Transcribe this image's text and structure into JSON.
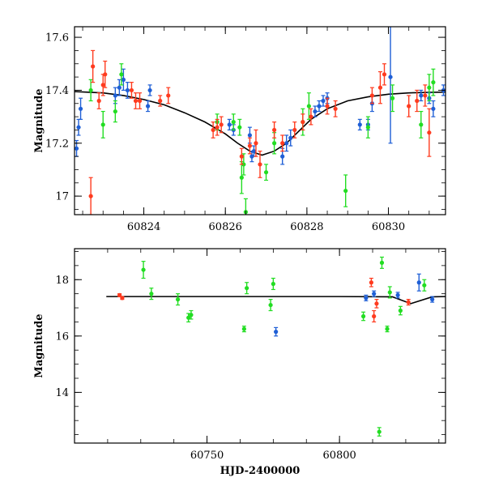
{
  "chart_data": [
    {
      "type": "scatter",
      "panel": "top",
      "title": "",
      "xlabel": "",
      "ylabel": "Magnitude",
      "xlim": [
        60822.3,
        60831.4
      ],
      "ylim": [
        17.64,
        16.93
      ],
      "y_inverted": true,
      "grid": false,
      "xticks": [
        60824,
        60826,
        60828,
        60830
      ],
      "xtick_labels": [
        "60824",
        "60826",
        "60828",
        "60830"
      ],
      "yticks": [
        17,
        17.2,
        17.4,
        17.6
      ],
      "ytick_labels": [
        "17",
        "17.2",
        "17.4",
        "17.6"
      ],
      "model": {
        "type": "line",
        "color": "#000000",
        "x": [
          60822.3,
          60823.0,
          60823.5,
          60824.0,
          60824.5,
          60825.0,
          60825.5,
          60826.0,
          60826.3,
          60826.6,
          60826.9,
          60827.2,
          60827.5,
          60827.8,
          60828.1,
          60828.5,
          60829.0,
          60829.5,
          60830.0,
          60830.5,
          60831.0,
          60831.4
        ],
        "y": [
          17.395,
          17.39,
          17.38,
          17.365,
          17.345,
          17.315,
          17.28,
          17.235,
          17.2,
          17.17,
          17.155,
          17.17,
          17.2,
          17.245,
          17.29,
          17.33,
          17.36,
          17.375,
          17.385,
          17.39,
          17.392,
          17.393
        ]
      },
      "series": [
        {
          "color": "#1f5fd6",
          "points": [
            {
              "x": 60822.35,
              "y": 17.18,
              "err": 0.03
            },
            {
              "x": 60822.4,
              "y": 17.26,
              "err": 0.03
            },
            {
              "x": 60822.45,
              "y": 17.33,
              "err": 0.04
            },
            {
              "x": 60823.3,
              "y": 17.38,
              "err": 0.03
            },
            {
              "x": 60823.4,
              "y": 17.41,
              "err": 0.03
            },
            {
              "x": 60823.5,
              "y": 17.44,
              "err": 0.04
            },
            {
              "x": 60823.6,
              "y": 17.4,
              "err": 0.03
            },
            {
              "x": 60824.1,
              "y": 17.34,
              "err": 0.02
            },
            {
              "x": 60824.15,
              "y": 17.4,
              "err": 0.02
            },
            {
              "x": 60826.1,
              "y": 17.27,
              "err": 0.02
            },
            {
              "x": 60826.2,
              "y": 17.25,
              "err": 0.02
            },
            {
              "x": 60826.6,
              "y": 17.23,
              "err": 0.03
            },
            {
              "x": 60826.65,
              "y": 17.15,
              "err": 0.02
            },
            {
              "x": 60826.7,
              "y": 17.17,
              "err": 0.02
            },
            {
              "x": 60827.4,
              "y": 17.15,
              "err": 0.03
            },
            {
              "x": 60827.5,
              "y": 17.2,
              "err": 0.03
            },
            {
              "x": 60827.6,
              "y": 17.22,
              "err": 0.03
            },
            {
              "x": 60828.2,
              "y": 17.32,
              "err": 0.02
            },
            {
              "x": 60828.3,
              "y": 17.34,
              "err": 0.02
            },
            {
              "x": 60828.4,
              "y": 17.36,
              "err": 0.02
            },
            {
              "x": 60828.5,
              "y": 17.37,
              "err": 0.02
            },
            {
              "x": 60829.3,
              "y": 17.27,
              "err": 0.02
            },
            {
              "x": 60829.5,
              "y": 17.27,
              "err": 0.02
            },
            {
              "x": 60829.6,
              "y": 17.35,
              "err": 0.03
            },
            {
              "x": 60830.05,
              "y": 17.45,
              "err": 0.25
            },
            {
              "x": 60830.8,
              "y": 17.38,
              "err": 0.02
            },
            {
              "x": 60831.0,
              "y": 17.37,
              "err": 0.02
            },
            {
              "x": 60831.1,
              "y": 17.33,
              "err": 0.03
            },
            {
              "x": 60831.35,
              "y": 17.4,
              "err": 0.02
            }
          ]
        },
        {
          "color": "#22dd22",
          "points": [
            {
              "x": 60822.7,
              "y": 17.4,
              "err": 0.04
            },
            {
              "x": 60823.0,
              "y": 17.27,
              "err": 0.05
            },
            {
              "x": 60823.3,
              "y": 17.32,
              "err": 0.04
            },
            {
              "x": 60823.45,
              "y": 17.46,
              "err": 0.04
            },
            {
              "x": 60825.8,
              "y": 17.28,
              "err": 0.03
            },
            {
              "x": 60826.2,
              "y": 17.28,
              "err": 0.03
            },
            {
              "x": 60826.35,
              "y": 17.26,
              "err": 0.03
            },
            {
              "x": 60826.4,
              "y": 17.07,
              "err": 0.06
            },
            {
              "x": 60826.45,
              "y": 17.12,
              "err": 0.04
            },
            {
              "x": 60826.5,
              "y": 16.94,
              "err": 0.05
            },
            {
              "x": 60827.0,
              "y": 17.09,
              "err": 0.03
            },
            {
              "x": 60827.2,
              "y": 17.2,
              "err": 0.04
            },
            {
              "x": 60827.9,
              "y": 17.28,
              "err": 0.05
            },
            {
              "x": 60828.05,
              "y": 17.34,
              "err": 0.05
            },
            {
              "x": 60828.95,
              "y": 17.02,
              "err": 0.06
            },
            {
              "x": 60829.5,
              "y": 17.26,
              "err": 0.04
            },
            {
              "x": 60830.1,
              "y": 17.37,
              "err": 0.05
            },
            {
              "x": 60830.8,
              "y": 17.27,
              "err": 0.05
            },
            {
              "x": 60831.0,
              "y": 17.41,
              "err": 0.05
            },
            {
              "x": 60831.1,
              "y": 17.43,
              "err": 0.05
            }
          ]
        },
        {
          "color": "#ff3b1f",
          "points": [
            {
              "x": 60822.7,
              "y": 17.0,
              "err": 0.07
            },
            {
              "x": 60822.75,
              "y": 17.49,
              "err": 0.06
            },
            {
              "x": 60822.9,
              "y": 17.36,
              "err": 0.03
            },
            {
              "x": 60823.0,
              "y": 17.42,
              "err": 0.04
            },
            {
              "x": 60823.05,
              "y": 17.46,
              "err": 0.05
            },
            {
              "x": 60823.7,
              "y": 17.4,
              "err": 0.03
            },
            {
              "x": 60823.8,
              "y": 17.36,
              "err": 0.03
            },
            {
              "x": 60823.9,
              "y": 17.36,
              "err": 0.03
            },
            {
              "x": 60824.4,
              "y": 17.36,
              "err": 0.02
            },
            {
              "x": 60824.6,
              "y": 17.38,
              "err": 0.03
            },
            {
              "x": 60825.7,
              "y": 17.25,
              "err": 0.03
            },
            {
              "x": 60825.8,
              "y": 17.26,
              "err": 0.03
            },
            {
              "x": 60825.9,
              "y": 17.27,
              "err": 0.03
            },
            {
              "x": 60826.4,
              "y": 17.15,
              "err": 0.03
            },
            {
              "x": 60826.6,
              "y": 17.19,
              "err": 0.03
            },
            {
              "x": 60826.75,
              "y": 17.2,
              "err": 0.05
            },
            {
              "x": 60826.85,
              "y": 17.12,
              "err": 0.05
            },
            {
              "x": 60827.2,
              "y": 17.25,
              "err": 0.03
            },
            {
              "x": 60827.4,
              "y": 17.2,
              "err": 0.03
            },
            {
              "x": 60827.7,
              "y": 17.25,
              "err": 0.03
            },
            {
              "x": 60827.9,
              "y": 17.28,
              "err": 0.03
            },
            {
              "x": 60828.1,
              "y": 17.3,
              "err": 0.03
            },
            {
              "x": 60828.5,
              "y": 17.34,
              "err": 0.03
            },
            {
              "x": 60828.7,
              "y": 17.33,
              "err": 0.03
            },
            {
              "x": 60829.6,
              "y": 17.38,
              "err": 0.03
            },
            {
              "x": 60829.8,
              "y": 17.41,
              "err": 0.06
            },
            {
              "x": 60829.9,
              "y": 17.46,
              "err": 0.04
            },
            {
              "x": 60830.5,
              "y": 17.34,
              "err": 0.04
            },
            {
              "x": 60830.7,
              "y": 17.36,
              "err": 0.04
            },
            {
              "x": 60830.9,
              "y": 17.38,
              "err": 0.04
            },
            {
              "x": 60831.0,
              "y": 17.24,
              "err": 0.09
            }
          ]
        }
      ]
    },
    {
      "type": "scatter",
      "panel": "bottom",
      "title": "",
      "xlabel": "HJD-2400000",
      "ylabel": "Magnitude",
      "xlim": [
        60700,
        60840
      ],
      "ylim": [
        19.1,
        12.2
      ],
      "y_inverted": true,
      "grid": false,
      "xticks": [
        60750,
        60800
      ],
      "xtick_labels": [
        "60750",
        "60800"
      ],
      "yticks": [
        14,
        16,
        18
      ],
      "ytick_labels": [
        "14",
        "16",
        "18"
      ],
      "model": {
        "type": "line",
        "color": "#000000",
        "x": [
          60712,
          60760,
          60800,
          60820,
          60826.9,
          60835,
          60840
        ],
        "y": [
          17.4,
          17.4,
          17.4,
          17.39,
          17.15,
          17.39,
          17.4
        ]
      },
      "series": [
        {
          "color": "#22dd22",
          "points": [
            {
              "x": 60726,
              "y": 18.35,
              "err": 0.3
            },
            {
              "x": 60729,
              "y": 17.5,
              "err": 0.2
            },
            {
              "x": 60739,
              "y": 17.3,
              "err": 0.2
            },
            {
              "x": 60743,
              "y": 16.65,
              "err": 0.15
            },
            {
              "x": 60744,
              "y": 16.75,
              "err": 0.15
            },
            {
              "x": 60764,
              "y": 16.25,
              "err": 0.1
            },
            {
              "x": 60765,
              "y": 17.7,
              "err": 0.2
            },
            {
              "x": 60774,
              "y": 17.1,
              "err": 0.2
            },
            {
              "x": 60775,
              "y": 17.85,
              "err": 0.2
            },
            {
              "x": 60809,
              "y": 16.7,
              "err": 0.15
            },
            {
              "x": 60815,
              "y": 12.6,
              "err": 0.15
            },
            {
              "x": 60816,
              "y": 18.6,
              "err": 0.2
            },
            {
              "x": 60818,
              "y": 16.25,
              "err": 0.1
            },
            {
              "x": 60819,
              "y": 17.55,
              "err": 0.2
            },
            {
              "x": 60823,
              "y": 16.9,
              "err": 0.15
            },
            {
              "x": 60832,
              "y": 17.8,
              "err": 0.2
            }
          ]
        },
        {
          "color": "#1f5fd6",
          "points": [
            {
              "x": 60776,
              "y": 16.15,
              "err": 0.15
            },
            {
              "x": 60810,
              "y": 17.35,
              "err": 0.1
            },
            {
              "x": 60813,
              "y": 17.5,
              "err": 0.1
            },
            {
              "x": 60822,
              "y": 17.45,
              "err": 0.1
            },
            {
              "x": 60830,
              "y": 17.9,
              "err": 0.3
            },
            {
              "x": 60835,
              "y": 17.3,
              "err": 0.1
            }
          ]
        },
        {
          "color": "#ff3b1f",
          "points": [
            {
              "x": 60717,
              "y": 17.45,
              "err": 0.05
            },
            {
              "x": 60718,
              "y": 17.35,
              "err": 0.05
            },
            {
              "x": 60812,
              "y": 17.9,
              "err": 0.15
            },
            {
              "x": 60813,
              "y": 16.7,
              "err": 0.2
            },
            {
              "x": 60814,
              "y": 17.15,
              "err": 0.15
            },
            {
              "x": 60826,
              "y": 17.2,
              "err": 0.1
            }
          ]
        }
      ]
    }
  ]
}
